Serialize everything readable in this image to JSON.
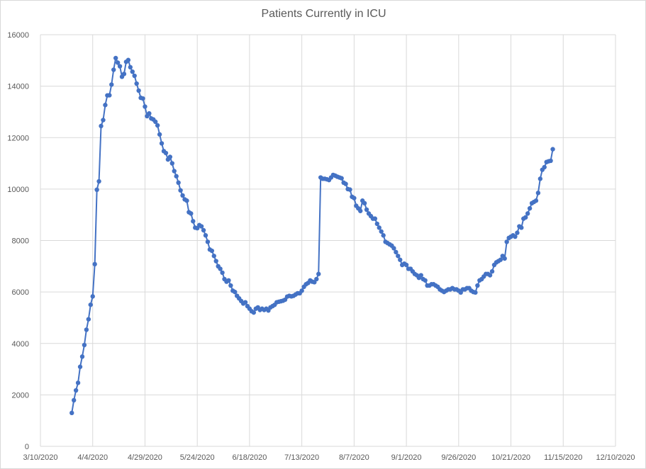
{
  "chart_data": {
    "type": "line",
    "title": "Patients Currently in ICU",
    "xlabel": "",
    "ylabel": "",
    "ylim": [
      0,
      16000
    ],
    "yticks": [
      0,
      2000,
      4000,
      6000,
      8000,
      10000,
      12000,
      14000,
      16000
    ],
    "ytick_labels": [
      "0",
      "2000",
      "4000",
      "6000",
      "8000",
      "10000",
      "12000",
      "14000",
      "16000"
    ],
    "xlim": [
      "2020-03-10",
      "2020-12-10"
    ],
    "xtick_labels": [
      "3/10/2020",
      "4/4/2020",
      "4/29/2020",
      "5/24/2020",
      "6/18/2020",
      "7/13/2020",
      "8/7/2020",
      "9/1/2020",
      "9/26/2020",
      "10/21/2020",
      "11/15/2020",
      "12/10/2020"
    ],
    "grid": "vertical and horizontal",
    "legend": "none",
    "series": [
      {
        "color": "#4472c4",
        "points": [
          [
            "2020-03-25",
            1299
          ],
          [
            "2020-03-26",
            1792
          ],
          [
            "2020-03-27",
            2174
          ],
          [
            "2020-03-28",
            2469
          ],
          [
            "2020-03-29",
            3091
          ],
          [
            "2020-03-30",
            3487
          ],
          [
            "2020-03-31",
            3937
          ],
          [
            "2020-04-01",
            4532
          ],
          [
            "2020-04-02",
            4939
          ],
          [
            "2020-04-03",
            5503
          ],
          [
            "2020-04-04",
            5829
          ],
          [
            "2020-04-05",
            7081
          ],
          [
            "2020-04-06",
            9974
          ],
          [
            "2020-04-07",
            10300
          ],
          [
            "2020-04-08",
            12452
          ],
          [
            "2020-04-09",
            12682
          ],
          [
            "2020-04-10",
            13268
          ],
          [
            "2020-04-11",
            13641
          ],
          [
            "2020-04-12",
            13646
          ],
          [
            "2020-04-13",
            14061
          ],
          [
            "2020-04-14",
            14637
          ],
          [
            "2020-04-15",
            15091
          ],
          [
            "2020-04-16",
            14913
          ],
          [
            "2020-04-17",
            14773
          ],
          [
            "2020-04-18",
            14367
          ],
          [
            "2020-04-19",
            14476
          ],
          [
            "2020-04-20",
            14946
          ],
          [
            "2020-04-21",
            15016
          ],
          [
            "2020-04-22",
            14736
          ],
          [
            "2020-04-23",
            14563
          ],
          [
            "2020-04-24",
            14402
          ],
          [
            "2020-04-25",
            14099
          ],
          [
            "2020-04-26",
            13827
          ],
          [
            "2020-04-27",
            13546
          ],
          [
            "2020-04-28",
            13521
          ],
          [
            "2020-04-29",
            13206
          ],
          [
            "2020-04-30",
            12834
          ],
          [
            "2020-05-01",
            12940
          ],
          [
            "2020-05-02",
            12744
          ],
          [
            "2020-05-03",
            12706
          ],
          [
            "2020-05-04",
            12617
          ],
          [
            "2020-05-05",
            12475
          ],
          [
            "2020-05-06",
            12125
          ],
          [
            "2020-05-07",
            11775
          ],
          [
            "2020-05-08",
            11475
          ],
          [
            "2020-05-09",
            11400
          ],
          [
            "2020-05-10",
            11150
          ],
          [
            "2020-05-11",
            11250
          ],
          [
            "2020-05-12",
            11000
          ],
          [
            "2020-05-13",
            10700
          ],
          [
            "2020-05-14",
            10500
          ],
          [
            "2020-05-15",
            10250
          ],
          [
            "2020-05-16",
            9950
          ],
          [
            "2020-05-17",
            9750
          ],
          [
            "2020-05-18",
            9600
          ],
          [
            "2020-05-19",
            9550
          ],
          [
            "2020-05-20",
            9100
          ],
          [
            "2020-05-21",
            9050
          ],
          [
            "2020-05-22",
            8750
          ],
          [
            "2020-05-23",
            8500
          ],
          [
            "2020-05-24",
            8480
          ],
          [
            "2020-05-25",
            8600
          ],
          [
            "2020-05-26",
            8550
          ],
          [
            "2020-05-27",
            8400
          ],
          [
            "2020-05-28",
            8200
          ],
          [
            "2020-05-29",
            7950
          ],
          [
            "2020-05-30",
            7650
          ],
          [
            "2020-05-31",
            7600
          ],
          [
            "2020-06-01",
            7400
          ],
          [
            "2020-06-02",
            7200
          ],
          [
            "2020-06-03",
            7000
          ],
          [
            "2020-06-04",
            6900
          ],
          [
            "2020-06-05",
            6750
          ],
          [
            "2020-06-06",
            6500
          ],
          [
            "2020-06-07",
            6400
          ],
          [
            "2020-06-08",
            6450
          ],
          [
            "2020-06-09",
            6250
          ],
          [
            "2020-06-10",
            6050
          ],
          [
            "2020-06-11",
            6000
          ],
          [
            "2020-06-12",
            5850
          ],
          [
            "2020-06-13",
            5750
          ],
          [
            "2020-06-14",
            5650
          ],
          [
            "2020-06-15",
            5550
          ],
          [
            "2020-06-16",
            5600
          ],
          [
            "2020-06-17",
            5450
          ],
          [
            "2020-06-18",
            5350
          ],
          [
            "2020-06-19",
            5250
          ],
          [
            "2020-06-20",
            5200
          ],
          [
            "2020-06-21",
            5350
          ],
          [
            "2020-06-22",
            5400
          ],
          [
            "2020-06-23",
            5300
          ],
          [
            "2020-06-24",
            5350
          ],
          [
            "2020-06-25",
            5300
          ],
          [
            "2020-06-26",
            5350
          ],
          [
            "2020-06-27",
            5280
          ],
          [
            "2020-06-28",
            5400
          ],
          [
            "2020-06-29",
            5450
          ],
          [
            "2020-06-30",
            5500
          ],
          [
            "2020-07-01",
            5600
          ],
          [
            "2020-07-02",
            5620
          ],
          [
            "2020-07-03",
            5640
          ],
          [
            "2020-07-04",
            5660
          ],
          [
            "2020-07-05",
            5700
          ],
          [
            "2020-07-06",
            5820
          ],
          [
            "2020-07-07",
            5850
          ],
          [
            "2020-07-08",
            5830
          ],
          [
            "2020-07-09",
            5850
          ],
          [
            "2020-07-10",
            5900
          ],
          [
            "2020-07-11",
            5950
          ],
          [
            "2020-07-12",
            5950
          ],
          [
            "2020-07-13",
            6050
          ],
          [
            "2020-07-14",
            6200
          ],
          [
            "2020-07-15",
            6300
          ],
          [
            "2020-07-16",
            6350
          ],
          [
            "2020-07-17",
            6450
          ],
          [
            "2020-07-18",
            6400
          ],
          [
            "2020-07-19",
            6380
          ],
          [
            "2020-07-20",
            6500
          ],
          [
            "2020-07-21",
            6700
          ],
          [
            "2020-07-22",
            10450
          ],
          [
            "2020-07-23",
            10400
          ],
          [
            "2020-07-24",
            10400
          ],
          [
            "2020-07-25",
            10380
          ],
          [
            "2020-07-26",
            10350
          ],
          [
            "2020-07-27",
            10450
          ],
          [
            "2020-07-28",
            10550
          ],
          [
            "2020-07-29",
            10520
          ],
          [
            "2020-07-30",
            10480
          ],
          [
            "2020-07-31",
            10450
          ],
          [
            "2020-08-01",
            10420
          ],
          [
            "2020-08-02",
            10250
          ],
          [
            "2020-08-03",
            10200
          ],
          [
            "2020-08-04",
            10000
          ],
          [
            "2020-08-05",
            9980
          ],
          [
            "2020-08-06",
            9700
          ],
          [
            "2020-08-07",
            9650
          ],
          [
            "2020-08-08",
            9350
          ],
          [
            "2020-08-09",
            9250
          ],
          [
            "2020-08-10",
            9150
          ],
          [
            "2020-08-11",
            9550
          ],
          [
            "2020-08-12",
            9450
          ],
          [
            "2020-08-13",
            9200
          ],
          [
            "2020-08-14",
            9050
          ],
          [
            "2020-08-15",
            8950
          ],
          [
            "2020-08-16",
            8850
          ],
          [
            "2020-08-17",
            8850
          ],
          [
            "2020-08-18",
            8650
          ],
          [
            "2020-08-19",
            8500
          ],
          [
            "2020-08-20",
            8350
          ],
          [
            "2020-08-21",
            8200
          ],
          [
            "2020-08-22",
            7950
          ],
          [
            "2020-08-23",
            7900
          ],
          [
            "2020-08-24",
            7850
          ],
          [
            "2020-08-25",
            7800
          ],
          [
            "2020-08-26",
            7700
          ],
          [
            "2020-08-27",
            7550
          ],
          [
            "2020-08-28",
            7400
          ],
          [
            "2020-08-29",
            7250
          ],
          [
            "2020-08-30",
            7050
          ],
          [
            "2020-08-31",
            7100
          ],
          [
            "2020-09-01",
            7050
          ],
          [
            "2020-09-02",
            6900
          ],
          [
            "2020-09-03",
            6900
          ],
          [
            "2020-09-04",
            6800
          ],
          [
            "2020-09-05",
            6700
          ],
          [
            "2020-09-06",
            6650
          ],
          [
            "2020-09-07",
            6550
          ],
          [
            "2020-09-08",
            6650
          ],
          [
            "2020-09-09",
            6500
          ],
          [
            "2020-09-10",
            6450
          ],
          [
            "2020-09-11",
            6250
          ],
          [
            "2020-09-12",
            6250
          ],
          [
            "2020-09-13",
            6300
          ],
          [
            "2020-09-14",
            6300
          ],
          [
            "2020-09-15",
            6250
          ],
          [
            "2020-09-16",
            6200
          ],
          [
            "2020-09-17",
            6100
          ],
          [
            "2020-09-18",
            6050
          ],
          [
            "2020-09-19",
            6000
          ],
          [
            "2020-09-20",
            6050
          ],
          [
            "2020-09-21",
            6100
          ],
          [
            "2020-09-22",
            6100
          ],
          [
            "2020-09-23",
            6150
          ],
          [
            "2020-09-24",
            6100
          ],
          [
            "2020-09-25",
            6100
          ],
          [
            "2020-09-26",
            6050
          ],
          [
            "2020-09-27",
            5980
          ],
          [
            "2020-09-28",
            6100
          ],
          [
            "2020-09-29",
            6100
          ],
          [
            "2020-09-30",
            6150
          ],
          [
            "2020-10-01",
            6150
          ],
          [
            "2020-10-02",
            6050
          ],
          [
            "2020-10-03",
            6000
          ],
          [
            "2020-10-04",
            5980
          ],
          [
            "2020-10-05",
            6250
          ],
          [
            "2020-10-06",
            6450
          ],
          [
            "2020-10-07",
            6500
          ],
          [
            "2020-10-08",
            6600
          ],
          [
            "2020-10-09",
            6700
          ],
          [
            "2020-10-10",
            6700
          ],
          [
            "2020-10-11",
            6650
          ],
          [
            "2020-10-12",
            6800
          ],
          [
            "2020-10-13",
            7050
          ],
          [
            "2020-10-14",
            7150
          ],
          [
            "2020-10-15",
            7200
          ],
          [
            "2020-10-16",
            7250
          ],
          [
            "2020-10-17",
            7400
          ],
          [
            "2020-10-18",
            7300
          ],
          [
            "2020-10-19",
            7950
          ],
          [
            "2020-10-20",
            8100
          ],
          [
            "2020-10-21",
            8150
          ],
          [
            "2020-10-22",
            8200
          ],
          [
            "2020-10-23",
            8150
          ],
          [
            "2020-10-24",
            8300
          ],
          [
            "2020-10-25",
            8550
          ],
          [
            "2020-10-26",
            8500
          ],
          [
            "2020-10-27",
            8850
          ],
          [
            "2020-10-28",
            8900
          ],
          [
            "2020-10-29",
            9050
          ],
          [
            "2020-10-30",
            9250
          ],
          [
            "2020-10-31",
            9450
          ],
          [
            "2020-11-01",
            9500
          ],
          [
            "2020-11-02",
            9550
          ],
          [
            "2020-11-03",
            9850
          ],
          [
            "2020-11-04",
            10400
          ],
          [
            "2020-11-05",
            10750
          ],
          [
            "2020-11-06",
            10850
          ],
          [
            "2020-11-07",
            11050
          ],
          [
            "2020-11-08",
            11080
          ],
          [
            "2020-11-09",
            11100
          ],
          [
            "2020-11-10",
            11550
          ]
        ]
      }
    ]
  }
}
